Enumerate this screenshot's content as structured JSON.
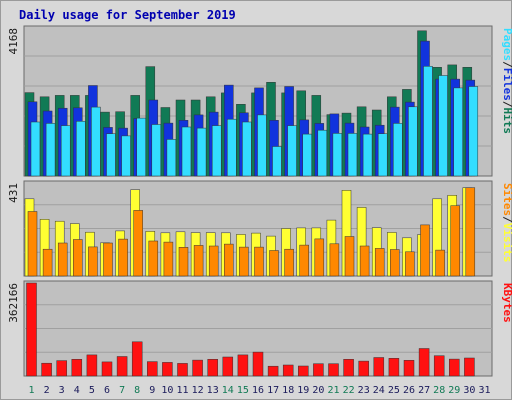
{
  "title": "Daily usage for September 2019",
  "colors": {
    "hits": "#117a55",
    "files": "#1133dd",
    "pages": "#33ddff",
    "visits": "#ffff33",
    "sites": "#ff8800",
    "kbytes": "#ff1111",
    "weekend_day_label": "#117a55",
    "weekday_day_label": "#1a1a5a",
    "panel_bg": "#c0c0c0",
    "frame_bg": "#d8d8d8",
    "grid": "#a0a0a0"
  },
  "chart_data": [
    {
      "type": "bar",
      "panel": "hits-files-pages",
      "max_label": "4168",
      "ylim": [
        0,
        4168
      ],
      "right_label_parts": [
        "Pages",
        "/",
        "Files",
        "/",
        "Hits"
      ],
      "categories": [
        "1",
        "2",
        "3",
        "4",
        "5",
        "6",
        "7",
        "8",
        "9",
        "10",
        "11",
        "12",
        "13",
        "14",
        "15",
        "16",
        "17",
        "18",
        "19",
        "20",
        "21",
        "22",
        "23",
        "24",
        "25",
        "26",
        "27",
        "28",
        "29",
        "30"
      ],
      "series": [
        {
          "name": "Hits",
          "values": [
            2350,
            2230,
            2270,
            2270,
            2270,
            1800,
            1810,
            2270,
            3080,
            1930,
            2140,
            2140,
            2230,
            2340,
            2020,
            2340,
            2640,
            2340,
            2400,
            2270,
            1730,
            1770,
            1950,
            1860,
            2230,
            2440,
            4090,
            3060,
            3130,
            3060
          ]
        },
        {
          "name": "Files",
          "values": [
            2090,
            1830,
            1910,
            1920,
            2550,
            1370,
            1350,
            1620,
            2140,
            1490,
            1570,
            1720,
            1800,
            2560,
            1780,
            2480,
            1570,
            2520,
            1580,
            1480,
            1750,
            1490,
            1380,
            1430,
            1940,
            2080,
            3800,
            2730,
            2730,
            2700
          ]
        },
        {
          "name": "Pages",
          "values": [
            1520,
            1480,
            1420,
            1540,
            1940,
            1190,
            1130,
            1630,
            1450,
            1030,
            1380,
            1350,
            1420,
            1600,
            1520,
            1720,
            830,
            1420,
            1180,
            1290,
            1200,
            1200,
            1180,
            1190,
            1480,
            1950,
            3090,
            2830,
            2480,
            2520
          ]
        }
      ]
    },
    {
      "type": "bar",
      "panel": "visits-sites",
      "max_label": "431",
      "ylim": [
        0,
        431
      ],
      "right_label_parts": [
        "Sites",
        "/",
        "Visits"
      ],
      "categories": [
        "1",
        "2",
        "3",
        "4",
        "5",
        "6",
        "7",
        "8",
        "9",
        "10",
        "11",
        "12",
        "13",
        "14",
        "15",
        "16",
        "17",
        "18",
        "19",
        "20",
        "21",
        "22",
        "23",
        "24",
        "25",
        "26",
        "27",
        "28",
        "29",
        "30"
      ],
      "series": [
        {
          "name": "Visits",
          "values": [
            358,
            263,
            254,
            243,
            203,
            154,
            209,
            400,
            207,
            200,
            205,
            201,
            201,
            200,
            193,
            199,
            185,
            220,
            223,
            223,
            259,
            397,
            318,
            224,
            202,
            177,
            192,
            358,
            374,
            409
          ]
        },
        {
          "name": "Sites",
          "values": [
            299,
            124,
            153,
            169,
            135,
            153,
            171,
            304,
            162,
            157,
            133,
            142,
            139,
            148,
            134,
            134,
            118,
            124,
            143,
            172,
            149,
            183,
            139,
            128,
            123,
            112,
            237,
            120,
            326,
            409
          ]
        }
      ]
    },
    {
      "type": "bar",
      "panel": "kbytes",
      "max_label": "362166",
      "ylim": [
        0,
        362166
      ],
      "right_label_parts": [
        "KBytes"
      ],
      "categories": [
        "1",
        "2",
        "3",
        "4",
        "5",
        "6",
        "7",
        "8",
        "9",
        "10",
        "11",
        "12",
        "13",
        "14",
        "15",
        "16",
        "17",
        "18",
        "19",
        "20",
        "21",
        "22",
        "23",
        "24",
        "25",
        "26",
        "27",
        "28",
        "29",
        "30"
      ],
      "series": [
        {
          "name": "KBytes",
          "values": [
            362166,
            50000,
            60000,
            65000,
            82000,
            55000,
            76000,
            133000,
            56000,
            53000,
            49000,
            62000,
            65000,
            74000,
            82000,
            93000,
            38000,
            43000,
            39000,
            48000,
            48000,
            65000,
            58000,
            72000,
            69000,
            61000,
            107000,
            79000,
            66000,
            70000
          ]
        }
      ]
    }
  ],
  "x_axis": {
    "days": [
      "1",
      "2",
      "3",
      "4",
      "5",
      "6",
      "7",
      "8",
      "9",
      "10",
      "11",
      "12",
      "13",
      "14",
      "15",
      "16",
      "17",
      "18",
      "19",
      "20",
      "21",
      "22",
      "23",
      "24",
      "25",
      "26",
      "27",
      "28",
      "29",
      "30",
      "31"
    ],
    "weekend_days": [
      "1",
      "7",
      "8",
      "14",
      "15",
      "21",
      "22",
      "28",
      "29"
    ]
  }
}
